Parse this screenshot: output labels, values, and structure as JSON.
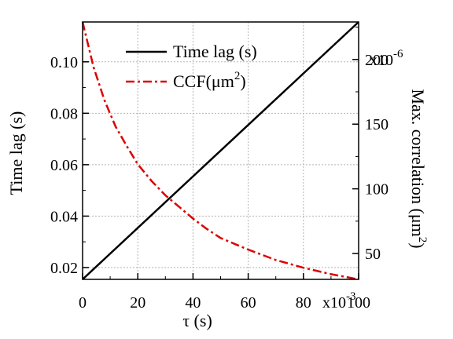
{
  "chart_data": {
    "type": "line",
    "x": {
      "label": "τ (s)",
      "scale_label": "x10",
      "scale_exp": "-3",
      "range": [
        0,
        0.1
      ],
      "ticks": [
        0,
        0.02,
        0.04,
        0.06,
        0.08,
        0.1
      ],
      "tick_labels": [
        "0",
        "20",
        "40",
        "60",
        "80",
        "100"
      ]
    },
    "y_left": {
      "label": "Time lag (s)",
      "range": [
        0.0154,
        0.1155
      ],
      "ticks": [
        0.02,
        0.04,
        0.06,
        0.08,
        0.1
      ],
      "tick_labels": [
        "0.02",
        "0.04",
        "0.06",
        "0.08",
        "0.10"
      ]
    },
    "y_right": {
      "label_main": "Max. correlation (μm",
      "label_exp": "2",
      "label_end": ")",
      "scale_label": "x10",
      "scale_exp": "-6",
      "range": [
        3e-05,
        0.000229
      ],
      "ticks": [
        5e-05,
        0.0001,
        0.00015,
        0.0002
      ],
      "tick_labels": [
        "50",
        "100",
        "150",
        "200"
      ]
    },
    "legend_position": "top-center",
    "grid": true,
    "series": [
      {
        "name": "Time lag (s)",
        "axis": "left",
        "color": "#000000",
        "dash": "solid",
        "x": [
          0,
          0.1
        ],
        "y": [
          0.0154,
          0.1155
        ]
      },
      {
        "name_main": "CCF(μm",
        "name_exp": "2",
        "name_end": ")",
        "axis": "right",
        "color": "#dd0000",
        "dash": "dash-dot",
        "x": [
          0,
          0.004,
          0.008,
          0.012,
          0.016,
          0.02,
          0.025,
          0.03,
          0.035,
          0.04,
          0.045,
          0.05,
          0.06,
          0.07,
          0.08,
          0.09,
          0.1
        ],
        "y": [
          0.000229,
          0.000194,
          0.000168,
          0.000148,
          0.000133,
          0.000119,
          0.000106,
          9.5e-05,
          8.6e-05,
          7.7e-05,
          6.9e-05,
          6.2e-05,
          5.3e-05,
          4.5e-05,
          3.9e-05,
          3.4e-05,
          3e-05
        ]
      }
    ]
  }
}
